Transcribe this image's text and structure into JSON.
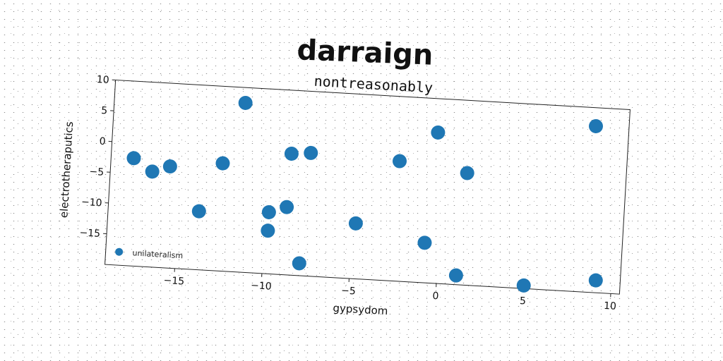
{
  "chart_data": {
    "type": "scatter",
    "suptitle": "darraign",
    "title": "nontreasonably",
    "xlabel": "gypsydom",
    "ylabel": "electrotheraputics",
    "xlim": [
      -19,
      10.5
    ],
    "ylim": [
      -20,
      10
    ],
    "xticks": [
      -15,
      -10,
      -5,
      0,
      5,
      10
    ],
    "yticks": [
      10,
      5,
      0,
      -5,
      -10,
      -15
    ],
    "xtick_labels": [
      "−15",
      "−10",
      "−5",
      "0",
      "5",
      "10"
    ],
    "ytick_labels": [
      "10",
      "5",
      "0",
      "−5",
      "−10",
      "−15"
    ],
    "legend_position": "lower-left",
    "series": [
      {
        "name": "unilateralism",
        "color": "#1f77b4",
        "points": [
          [
            -17.7,
            -2.5
          ],
          [
            -16.6,
            -4.5
          ],
          [
            -15.6,
            -3.5
          ],
          [
            -13.8,
            -10.5
          ],
          [
            -12.6,
            -2.5
          ],
          [
            -11.5,
            7.5
          ],
          [
            -9.8,
            -10.0
          ],
          [
            -9.8,
            -13.0
          ],
          [
            -8.7,
            -0.3
          ],
          [
            -8.8,
            -9.0
          ],
          [
            -7.6,
            0.0
          ],
          [
            -7.9,
            -18.0
          ],
          [
            -4.8,
            -11.0
          ],
          [
            -2.5,
            -0.5
          ],
          [
            -0.8,
            -13.5
          ],
          [
            -0.4,
            4.5
          ],
          [
            1.4,
            -1.8
          ],
          [
            1.1,
            -18.5
          ],
          [
            5.0,
            -19.5
          ],
          [
            8.6,
            7.0
          ],
          [
            9.1,
            -18.0
          ]
        ]
      }
    ]
  }
}
